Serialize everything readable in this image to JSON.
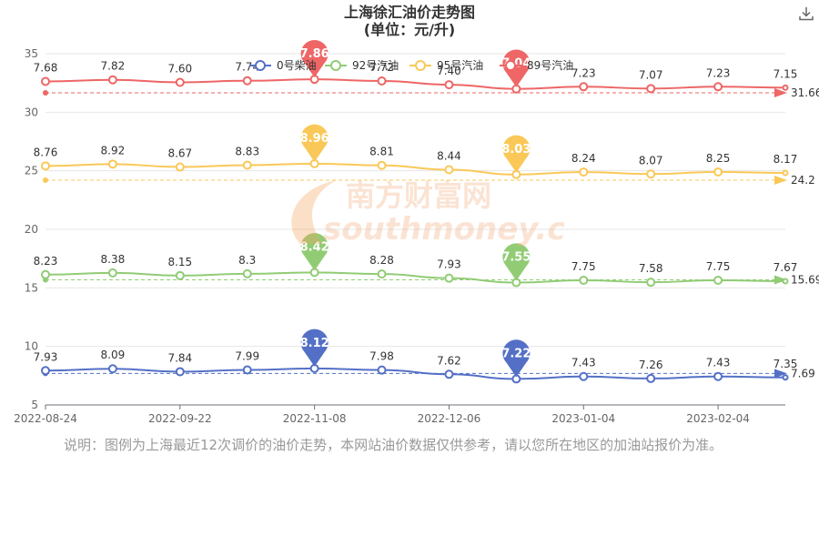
{
  "download_icon": "download-icon",
  "note": "说明：图例为上海最近12次调价的油价走势，本网站油价数据仅供参考，请以您所在地区的加油站报价为准。",
  "watermark": {
    "cn": "南方财富网",
    "en": "southmoney.com"
  },
  "chart_data": {
    "type": "line",
    "title": "上海徐汇油价走势图",
    "subtitle": "(单位：元/升)",
    "ylim": [
      5,
      35
    ],
    "yticks": [
      5,
      10,
      15,
      20,
      25,
      30,
      35
    ],
    "grid": true,
    "legend_position": "top",
    "x": [
      "2022-08-24",
      "2022-09-07",
      "2022-09-22",
      "2022-10-12",
      "2022-11-08",
      "2022-11-22",
      "2022-12-06",
      "2022-12-20",
      "2023-01-04",
      "2023-01-17",
      "2023-02-04",
      "2023-02-17"
    ],
    "xtick_labels": [
      "2022-08-24",
      "2022-09-22",
      "2022-11-08",
      "2022-12-06",
      "2023-01-04",
      "2023-02-04"
    ],
    "series": [
      {
        "name": "0号柴油",
        "color": "#5470c6",
        "labels": [
          "7.93",
          "8.09",
          "7.84",
          "7.99",
          "8.12",
          "7.98",
          "7.62",
          "7.22",
          "7.43",
          "7.26",
          "7.43",
          "7.35"
        ],
        "values": [
          7.93,
          8.09,
          7.84,
          7.99,
          8.12,
          7.98,
          7.62,
          7.22,
          7.43,
          7.26,
          7.43,
          7.35
        ],
        "max": {
          "label": "8.12",
          "index": 4
        },
        "min": {
          "label": "7.22",
          "index": 7
        },
        "average": "7.69"
      },
      {
        "name": "92号汽油",
        "color": "#91cc75",
        "labels": [
          "8.23",
          "8.38",
          "8.15",
          "8.3",
          "8.42",
          "8.28",
          "7.93",
          "7.55",
          "7.75",
          "7.58",
          "7.75",
          "7.67"
        ],
        "values": [
          8.23,
          8.38,
          8.15,
          8.3,
          8.42,
          8.28,
          7.93,
          7.55,
          7.75,
          7.58,
          7.75,
          7.67
        ],
        "max": {
          "label": "8.42",
          "index": 4
        },
        "min": {
          "label": "7.55",
          "index": 7
        },
        "average": "15.69"
      },
      {
        "name": "95号汽油",
        "color": "#fac858",
        "labels": [
          "8.76",
          "8.92",
          "8.67",
          "8.83",
          "8.96",
          "8.81",
          "8.44",
          "8.03",
          "8.24",
          "8.07",
          "8.25",
          "8.17"
        ],
        "values": [
          8.76,
          8.92,
          8.67,
          8.83,
          8.96,
          8.81,
          8.44,
          8.03,
          8.24,
          8.07,
          8.25,
          8.17
        ],
        "max": {
          "label": "8.96",
          "index": 4
        },
        "min": {
          "label": "8.03",
          "index": 7
        },
        "average": "24.2"
      },
      {
        "name": "89号汽油",
        "color": "#ee6666",
        "labels": [
          "7.68",
          "7.82",
          "7.60",
          "7.74",
          "7.86",
          "7.72",
          "7.40",
          "7.04",
          "7.23",
          "7.07",
          "7.23",
          "7.15"
        ],
        "values": [
          7.68,
          7.82,
          7.6,
          7.74,
          7.86,
          7.72,
          7.4,
          7.04,
          7.23,
          7.07,
          7.23,
          7.15
        ],
        "max": {
          "label": "7.86",
          "index": 4
        },
        "min": {
          "label": "7.04",
          "index": 7
        },
        "average": "31.66"
      }
    ]
  }
}
